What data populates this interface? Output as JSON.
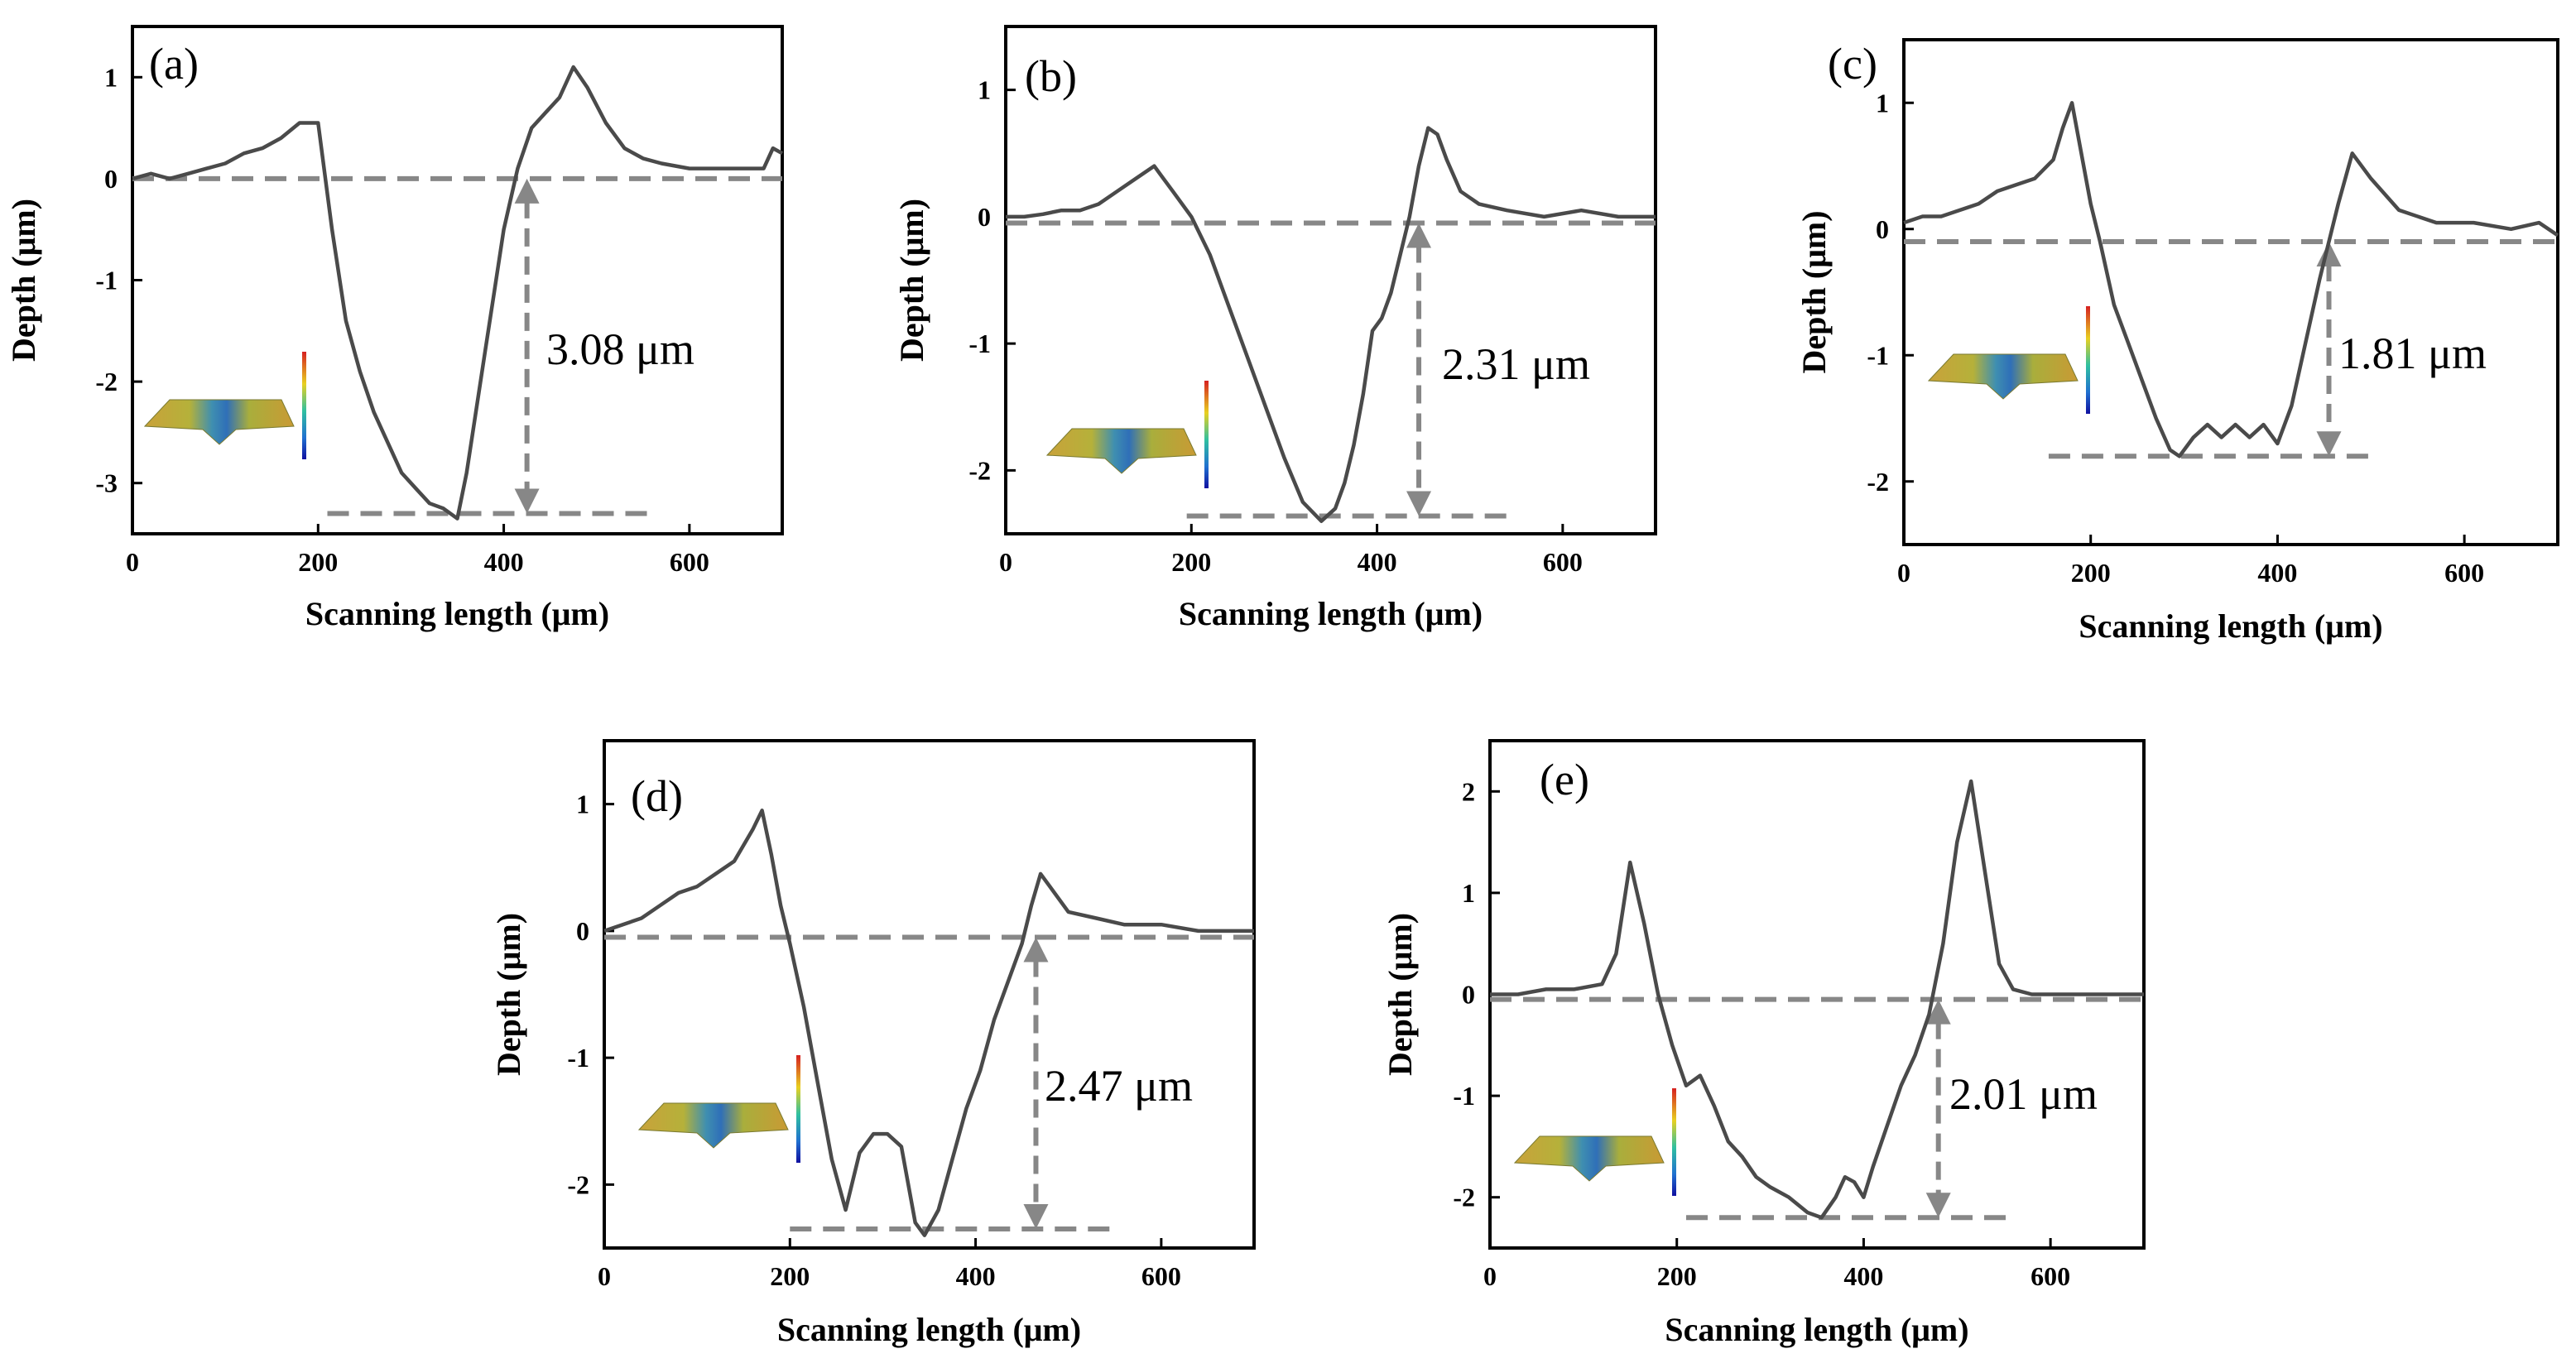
{
  "chart_data": [
    {
      "type": "line",
      "panel_label": "(a)",
      "xlabel": "Scanning length (μm)",
      "ylabel": "Depth (μm)",
      "xlim": [
        0,
        700
      ],
      "ylim": [
        -3.5,
        1.5
      ],
      "xticks": [
        0,
        200,
        400,
        600
      ],
      "yticks": [
        1,
        0,
        -1,
        -2,
        -3
      ],
      "series": [
        {
          "name": "profile",
          "x": [
            0,
            20,
            40,
            60,
            80,
            100,
            120,
            140,
            160,
            180,
            200,
            215,
            230,
            245,
            260,
            275,
            290,
            305,
            320,
            335,
            350,
            360,
            370,
            380,
            390,
            400,
            415,
            430,
            445,
            460,
            475,
            490,
            510,
            530,
            550,
            570,
            600,
            640,
            680,
            690,
            700
          ],
          "y": [
            0.0,
            0.05,
            0.0,
            0.05,
            0.1,
            0.15,
            0.25,
            0.3,
            0.4,
            0.55,
            0.55,
            -0.5,
            -1.4,
            -1.9,
            -2.3,
            -2.6,
            -2.9,
            -3.05,
            -3.2,
            -3.25,
            -3.35,
            -2.9,
            -2.3,
            -1.7,
            -1.1,
            -0.5,
            0.1,
            0.5,
            0.65,
            0.8,
            1.1,
            0.9,
            0.55,
            0.3,
            0.2,
            0.15,
            0.1,
            0.1,
            0.1,
            0.3,
            0.25
          ]
        }
      ],
      "reference_lines": [
        {
          "y": 0.0,
          "x": [
            0,
            700
          ]
        },
        {
          "y": -3.3,
          "x": [
            210,
            560
          ]
        }
      ],
      "arrow": {
        "x": 425,
        "y_from": 0.0,
        "y_to": -3.3
      },
      "depth_annotation": "3.08 μm"
    },
    {
      "type": "line",
      "panel_label": "(b)",
      "xlabel": "Scanning length (μm)",
      "ylabel": "Depth (μm)",
      "xlim": [
        0,
        700
      ],
      "ylim": [
        -2.5,
        1.5
      ],
      "xticks": [
        0,
        200,
        400,
        600
      ],
      "yticks": [
        1,
        0,
        -1,
        -2
      ],
      "series": [
        {
          "name": "profile",
          "x": [
            0,
            20,
            40,
            60,
            80,
            100,
            120,
            140,
            160,
            170,
            180,
            200,
            220,
            240,
            260,
            280,
            300,
            320,
            340,
            355,
            365,
            375,
            385,
            395,
            405,
            415,
            425,
            435,
            445,
            455,
            465,
            475,
            490,
            510,
            540,
            580,
            620,
            660,
            700
          ],
          "y": [
            0.0,
            0.0,
            0.02,
            0.05,
            0.05,
            0.1,
            0.2,
            0.3,
            0.4,
            0.3,
            0.2,
            0.0,
            -0.3,
            -0.7,
            -1.1,
            -1.5,
            -1.9,
            -2.25,
            -2.4,
            -2.3,
            -2.1,
            -1.8,
            -1.4,
            -0.9,
            -0.8,
            -0.6,
            -0.3,
            0.0,
            0.4,
            0.7,
            0.65,
            0.45,
            0.2,
            0.1,
            0.05,
            0.0,
            0.05,
            0.0,
            0.0
          ]
        }
      ],
      "reference_lines": [
        {
          "y": -0.05,
          "x": [
            0,
            700
          ]
        },
        {
          "y": -2.36,
          "x": [
            195,
            540
          ]
        }
      ],
      "arrow": {
        "x": 445,
        "y_from": -0.05,
        "y_to": -2.36
      },
      "depth_annotation": "2.31 μm"
    },
    {
      "type": "line",
      "panel_label": "(c)",
      "xlabel": "Scanning length (μm)",
      "ylabel": "Depth (μm)",
      "xlim": [
        0,
        700
      ],
      "ylim": [
        -2.5,
        1.5
      ],
      "xticks": [
        0,
        200,
        400,
        600
      ],
      "yticks": [
        1,
        0,
        -1,
        -2
      ],
      "series": [
        {
          "name": "profile",
          "x": [
            0,
            20,
            40,
            60,
            80,
            100,
            120,
            140,
            160,
            170,
            180,
            190,
            200,
            210,
            225,
            240,
            255,
            270,
            285,
            295,
            310,
            325,
            340,
            355,
            370,
            385,
            400,
            415,
            430,
            445,
            455,
            465,
            480,
            500,
            530,
            570,
            610,
            650,
            680,
            700
          ],
          "y": [
            0.05,
            0.1,
            0.1,
            0.15,
            0.2,
            0.3,
            0.35,
            0.4,
            0.55,
            0.8,
            1.0,
            0.6,
            0.2,
            -0.1,
            -0.6,
            -0.9,
            -1.2,
            -1.5,
            -1.75,
            -1.8,
            -1.65,
            -1.55,
            -1.65,
            -1.55,
            -1.65,
            -1.55,
            -1.7,
            -1.4,
            -0.9,
            -0.4,
            -0.1,
            0.2,
            0.6,
            0.4,
            0.15,
            0.05,
            0.05,
            0.0,
            0.05,
            -0.05
          ]
        }
      ],
      "reference_lines": [
        {
          "y": -0.1,
          "x": [
            0,
            700
          ]
        },
        {
          "y": -1.8,
          "x": [
            155,
            500
          ]
        }
      ],
      "arrow": {
        "x": 455,
        "y_from": -0.1,
        "y_to": -1.8
      },
      "depth_annotation": "1.81 μm"
    },
    {
      "type": "line",
      "panel_label": "(d)",
      "xlabel": "Scanning length (μm)",
      "ylabel": "Depth (μm)",
      "xlim": [
        0,
        700
      ],
      "ylim": [
        -2.5,
        1.5
      ],
      "xticks": [
        0,
        200,
        400,
        600
      ],
      "yticks": [
        1,
        0,
        -1,
        -2
      ],
      "series": [
        {
          "name": "profile",
          "x": [
            0,
            20,
            40,
            60,
            80,
            100,
            120,
            140,
            160,
            170,
            180,
            190,
            200,
            215,
            230,
            245,
            260,
            275,
            290,
            305,
            320,
            335,
            345,
            360,
            375,
            390,
            405,
            420,
            435,
            450,
            460,
            470,
            480,
            500,
            530,
            560,
            600,
            640,
            680,
            700
          ],
          "y": [
            0.0,
            0.05,
            0.1,
            0.2,
            0.3,
            0.35,
            0.45,
            0.55,
            0.8,
            0.95,
            0.6,
            0.2,
            -0.1,
            -0.6,
            -1.2,
            -1.8,
            -2.2,
            -1.75,
            -1.6,
            -1.6,
            -1.7,
            -2.3,
            -2.4,
            -2.2,
            -1.8,
            -1.4,
            -1.1,
            -0.7,
            -0.4,
            -0.1,
            0.2,
            0.45,
            0.35,
            0.15,
            0.1,
            0.05,
            0.05,
            0.0,
            0.0,
            0.0
          ]
        }
      ],
      "reference_lines": [
        {
          "y": -0.05,
          "x": [
            0,
            700
          ]
        },
        {
          "y": -2.35,
          "x": [
            200,
            550
          ]
        }
      ],
      "arrow": {
        "x": 465,
        "y_from": -0.05,
        "y_to": -2.35
      },
      "depth_annotation": "2.47 μm"
    },
    {
      "type": "line",
      "panel_label": "(e)",
      "xlabel": "Scanning length (μm)",
      "ylabel": "Depth (μm)",
      "xlim": [
        0,
        700
      ],
      "ylim": [
        -2.5,
        2.5
      ],
      "xticks": [
        0,
        200,
        400,
        600
      ],
      "yticks": [
        2,
        1,
        0,
        -1,
        -2
      ],
      "series": [
        {
          "name": "profile",
          "x": [
            0,
            30,
            60,
            90,
            120,
            135,
            150,
            165,
            180,
            195,
            210,
            225,
            240,
            255,
            270,
            285,
            300,
            320,
            340,
            355,
            370,
            380,
            390,
            400,
            410,
            425,
            440,
            455,
            470,
            485,
            500,
            515,
            530,
            545,
            560,
            580,
            610,
            650,
            700
          ],
          "y": [
            0.0,
            0.0,
            0.05,
            0.05,
            0.1,
            0.4,
            1.3,
            0.7,
            0.0,
            -0.5,
            -0.9,
            -0.8,
            -1.1,
            -1.45,
            -1.6,
            -1.8,
            -1.9,
            -2.0,
            -2.15,
            -2.2,
            -2.0,
            -1.8,
            -1.85,
            -2.0,
            -1.7,
            -1.3,
            -0.9,
            -0.6,
            -0.2,
            0.5,
            1.5,
            2.1,
            1.2,
            0.3,
            0.05,
            0.0,
            0.0,
            0.0,
            0.0
          ]
        }
      ],
      "reference_lines": [
        {
          "y": -0.05,
          "x": [
            0,
            700
          ]
        },
        {
          "y": -2.2,
          "x": [
            210,
            560
          ]
        }
      ],
      "arrow": {
        "x": 480,
        "y_from": -0.05,
        "y_to": -2.2
      },
      "depth_annotation": "2.01 μm"
    }
  ]
}
